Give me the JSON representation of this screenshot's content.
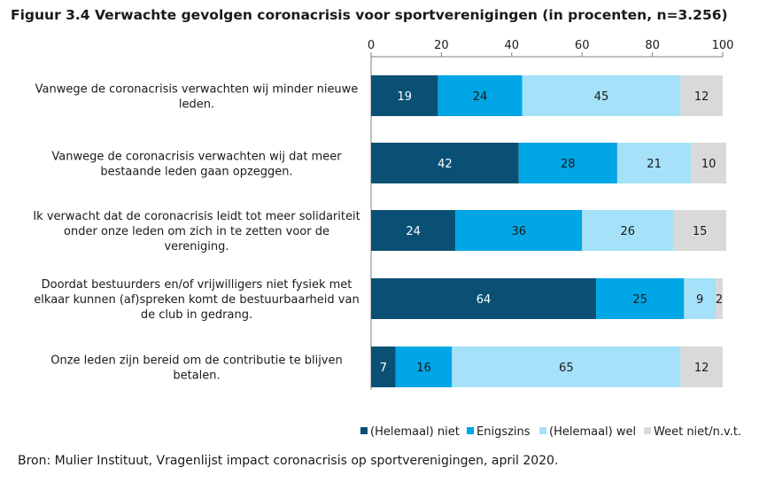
{
  "title": "Figuur 3.4 Verwachte gevolgen coronacrisis voor sportverenigingen (in procenten, n=3.256)",
  "source": "Bron: Mulier Instituut, Vragenlijst impact coronacrisis op sportverenigingen, april 2020.",
  "chart_data": {
    "type": "bar",
    "orientation": "horizontal",
    "stacked": true,
    "xlim": [
      0,
      100
    ],
    "ticks": [
      0,
      20,
      40,
      60,
      80,
      100
    ],
    "tick_labels": [
      "0",
      "20",
      "40",
      "60",
      "80",
      "100"
    ],
    "legend_position": "bottom",
    "categories": [
      "Vanwege de coronacrisis verwachten wij minder nieuwe leden.",
      "Vanwege de coronacrisis verwachten wij dat meer bestaande leden gaan opzeggen.",
      "Ik verwacht dat de coronacrisis leidt tot meer solidariteit onder onze leden om zich in te zetten voor de vereniging.",
      "Doordat bestuurders en/of vrijwilligers niet fysiek met elkaar kunnen (af)spreken komt de bestuurbaarheid van de club in gedrang.",
      "Onze leden zijn bereid om de contributie te blijven betalen."
    ],
    "category_lines": [
      [
        "Vanwege de coronacrisis verwachten wij minder nieuwe",
        "leden."
      ],
      [
        "Vanwege de coronacrisis verwachten wij dat meer",
        "bestaande leden gaan opzeggen."
      ],
      [
        "Ik verwacht dat de coronacrisis leidt tot meer solidariteit",
        "onder onze leden om zich in te zetten voor de",
        "vereniging."
      ],
      [
        "Doordat bestuurders en/of vrijwilligers niet fysiek met",
        "elkaar kunnen (af)spreken komt de bestuurbaarheid van",
        "de club in gedrang."
      ],
      [
        "Onze leden zijn bereid om de contributie te blijven",
        "betalen."
      ]
    ],
    "series": [
      {
        "name": "(Helemaal) niet",
        "color": "#0a5075",
        "label_color": "#ffffff",
        "values": [
          19,
          42,
          24,
          64,
          7
        ]
      },
      {
        "name": "Enigszins",
        "color": "#00a6e6",
        "label_color": "#1a1a1a",
        "values": [
          24,
          28,
          36,
          25,
          16
        ]
      },
      {
        "name": "(Helemaal) wel",
        "color": "#a5e1f8",
        "label_color": "#1a1a1a",
        "values": [
          45,
          21,
          26,
          9,
          65
        ]
      },
      {
        "name": "Weet niet/n.v.t.",
        "color": "#d9d9d9",
        "label_color": "#1a1a1a",
        "values": [
          12,
          10,
          15,
          2,
          12
        ]
      }
    ]
  }
}
